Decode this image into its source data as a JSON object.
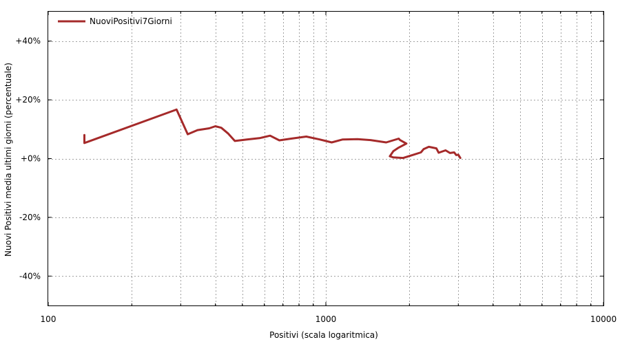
{
  "chart_data": {
    "type": "line",
    "title": "",
    "xlabel": "Positivi (scala logaritmica)",
    "ylabel": "Nuovi Positivi media ultimi giorni (percentuale)",
    "x_scale": "log",
    "xlim": [
      100,
      10000
    ],
    "ylim": [
      -50,
      50
    ],
    "x_ticks": [
      100,
      1000,
      10000
    ],
    "x_tick_labels": [
      "100",
      "1000",
      "10000"
    ],
    "y_ticks": [
      -40,
      -20,
      0,
      20,
      40
    ],
    "y_tick_labels": [
      "-40%",
      "-20%",
      "+0%",
      "+20%",
      "+40%"
    ],
    "grid": true,
    "legend": {
      "position": "top-left",
      "entries": [
        "NuoviPositivi7Giorni"
      ]
    },
    "series": [
      {
        "name": "NuoviPositivi7Giorni",
        "color": "#a52a2a",
        "x": [
          135,
          135,
          290,
          318,
          345,
          380,
          400,
          420,
          445,
          470,
          520,
          580,
          630,
          680,
          750,
          850,
          950,
          1050,
          1150,
          1300,
          1450,
          1650,
          1830,
          1850,
          1950,
          1820,
          1750,
          1700,
          1750,
          1900,
          2050,
          2200,
          2250,
          2350,
          2500,
          2550,
          2700,
          2800,
          2900,
          2950,
          3000,
          3050
        ],
        "y": [
          8,
          5.3,
          16.7,
          8.3,
          9.7,
          10.3,
          11,
          10.5,
          8.5,
          6,
          6.5,
          7,
          7.8,
          6.2,
          6.8,
          7.5,
          6.5,
          5.5,
          6.5,
          6.6,
          6.3,
          5.5,
          6.8,
          6.3,
          5.1,
          3.6,
          2.5,
          0.8,
          0.4,
          0.2,
          1.2,
          2.1,
          3.2,
          4,
          3.5,
          2,
          2.8,
          1.9,
          2.1,
          1.2,
          1.3,
          0.2
        ]
      }
    ]
  }
}
